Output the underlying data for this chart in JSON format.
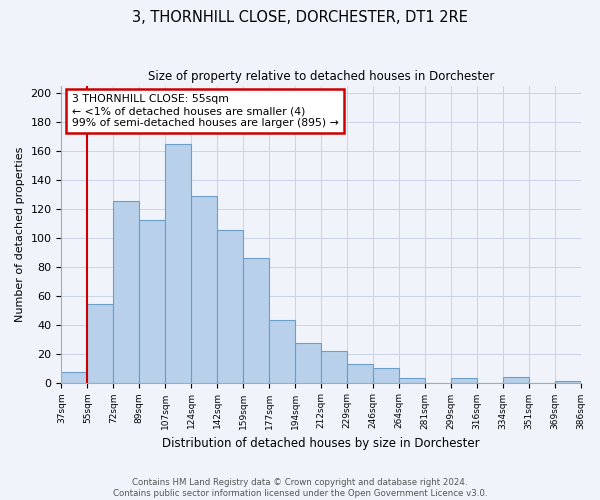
{
  "title": "3, THORNHILL CLOSE, DORCHESTER, DT1 2RE",
  "subtitle": "Size of property relative to detached houses in Dorchester",
  "xlabel": "Distribution of detached houses by size in Dorchester",
  "ylabel": "Number of detached properties",
  "bin_labels": [
    "37sqm",
    "55sqm",
    "72sqm",
    "89sqm",
    "107sqm",
    "124sqm",
    "142sqm",
    "159sqm",
    "177sqm",
    "194sqm",
    "212sqm",
    "229sqm",
    "246sqm",
    "264sqm",
    "281sqm",
    "299sqm",
    "316sqm",
    "334sqm",
    "351sqm",
    "369sqm",
    "386sqm"
  ],
  "counts": [
    7,
    54,
    125,
    112,
    165,
    129,
    105,
    86,
    43,
    27,
    22,
    13,
    10,
    3,
    0,
    3,
    0,
    4,
    0,
    1
  ],
  "bar_color": "#b8d0ea",
  "bar_edge_color": "#6b9fc8",
  "reference_line_index": 1,
  "reference_line_color": "#cc0000",
  "annotation_line1": "3 THORNHILL CLOSE: 55sqm",
  "annotation_line2": "← <1% of detached houses are smaller (4)",
  "annotation_line3": "99% of semi-detached houses are larger (895) →",
  "ylim": [
    0,
    205
  ],
  "yticks": [
    0,
    20,
    40,
    60,
    80,
    100,
    120,
    140,
    160,
    180,
    200
  ],
  "footer_line1": "Contains HM Land Registry data © Crown copyright and database right 2024.",
  "footer_line2": "Contains public sector information licensed under the Open Government Licence v3.0.",
  "background_color": "#f0f4fa",
  "grid_color": "#c8d4e8",
  "title_fontsize": 10.5,
  "subtitle_fontsize": 8.5
}
